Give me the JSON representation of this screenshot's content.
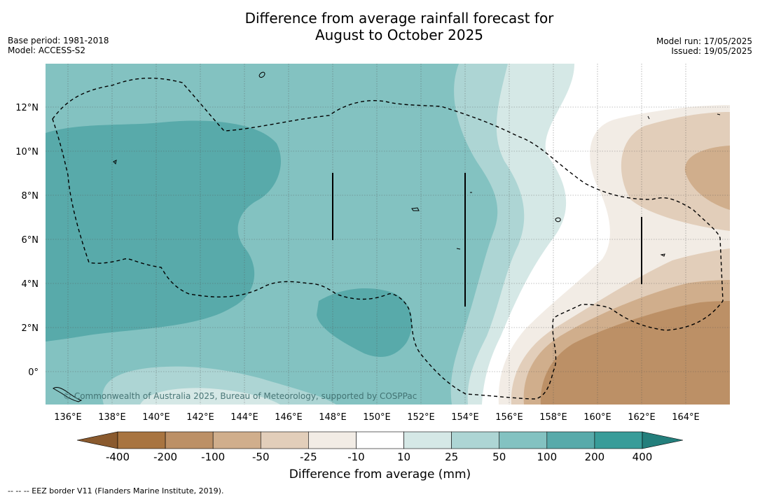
{
  "title": {
    "line1": "Difference from average rainfall forecast for",
    "line2": "August to October 2025"
  },
  "meta": {
    "base_period": "Base period: 1981-2018",
    "model": "Model: ACCESS-S2",
    "model_run": "Model run: 17/05/2025",
    "issued": "Issued: 19/05/2025"
  },
  "map": {
    "lon_labels": [
      "136°E",
      "138°E",
      "140°E",
      "142°E",
      "144°E",
      "146°E",
      "148°E",
      "150°E",
      "152°E",
      "154°E",
      "156°E",
      "158°E",
      "160°E",
      "162°E",
      "164°E"
    ],
    "lat_labels": [
      "12°N",
      "10°N",
      "8°N",
      "6°N",
      "4°N",
      "2°N",
      "0°"
    ],
    "copyright": "© Commonwealth of Australia 2025, Bureau of Meteorology, supported by COSPPac"
  },
  "colorbar": {
    "ticks": [
      "-400",
      "-200",
      "-100",
      "-50",
      "-25",
      "-10",
      "10",
      "25",
      "50",
      "100",
      "200",
      "400"
    ],
    "colors": [
      "#a87440",
      "#bc9066",
      "#d0ae8c",
      "#e2ceba",
      "#f2ece5",
      "#ffffff",
      "#d5e8e6",
      "#add5d4",
      "#83c2c1",
      "#58aaaa",
      "#389c99"
    ],
    "end_low": "#8a5a2e",
    "end_high": "#237f7c",
    "title": "Difference from average (mm)"
  },
  "footer": "--  --  -- EEZ border V11 (Flanders Marine Institute, 2019)."
}
